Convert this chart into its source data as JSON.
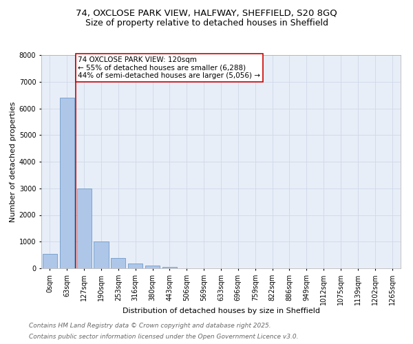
{
  "title_line1": "74, OXCLOSE PARK VIEW, HALFWAY, SHEFFIELD, S20 8GQ",
  "title_line2": "Size of property relative to detached houses in Sheffield",
  "xlabel": "Distribution of detached houses by size in Sheffield",
  "ylabel": "Number of detached properties",
  "bar_labels": [
    "0sqm",
    "63sqm",
    "127sqm",
    "190sqm",
    "253sqm",
    "316sqm",
    "380sqm",
    "443sqm",
    "506sqm",
    "569sqm",
    "633sqm",
    "696sqm",
    "759sqm",
    "822sqm",
    "886sqm",
    "949sqm",
    "1012sqm",
    "1075sqm",
    "1139sqm",
    "1202sqm",
    "1265sqm"
  ],
  "bar_values": [
    550,
    6400,
    3000,
    1000,
    380,
    175,
    110,
    60,
    0,
    0,
    0,
    0,
    0,
    0,
    0,
    0,
    0,
    0,
    0,
    0,
    0
  ],
  "bar_color": "#aec6e8",
  "bar_edge_color": "#5a8fc2",
  "vline_color": "#cc0000",
  "annotation_text": "74 OXCLOSE PARK VIEW: 120sqm\n← 55% of detached houses are smaller (6,288)\n44% of semi-detached houses are larger (5,056) →",
  "annotation_box_color": "#cc0000",
  "annotation_box_facecolor": "#ffffff",
  "ylim": [
    0,
    8000
  ],
  "yticks": [
    0,
    1000,
    2000,
    3000,
    4000,
    5000,
    6000,
    7000,
    8000
  ],
  "grid_color": "#d0d8e8",
  "background_color": "#e8eef8",
  "footer_line1": "Contains HM Land Registry data © Crown copyright and database right 2025.",
  "footer_line2": "Contains public sector information licensed under the Open Government Licence v3.0.",
  "title_fontsize": 9.5,
  "axis_label_fontsize": 8,
  "tick_fontsize": 7,
  "annotation_fontsize": 7.5,
  "footer_fontsize": 6.5
}
